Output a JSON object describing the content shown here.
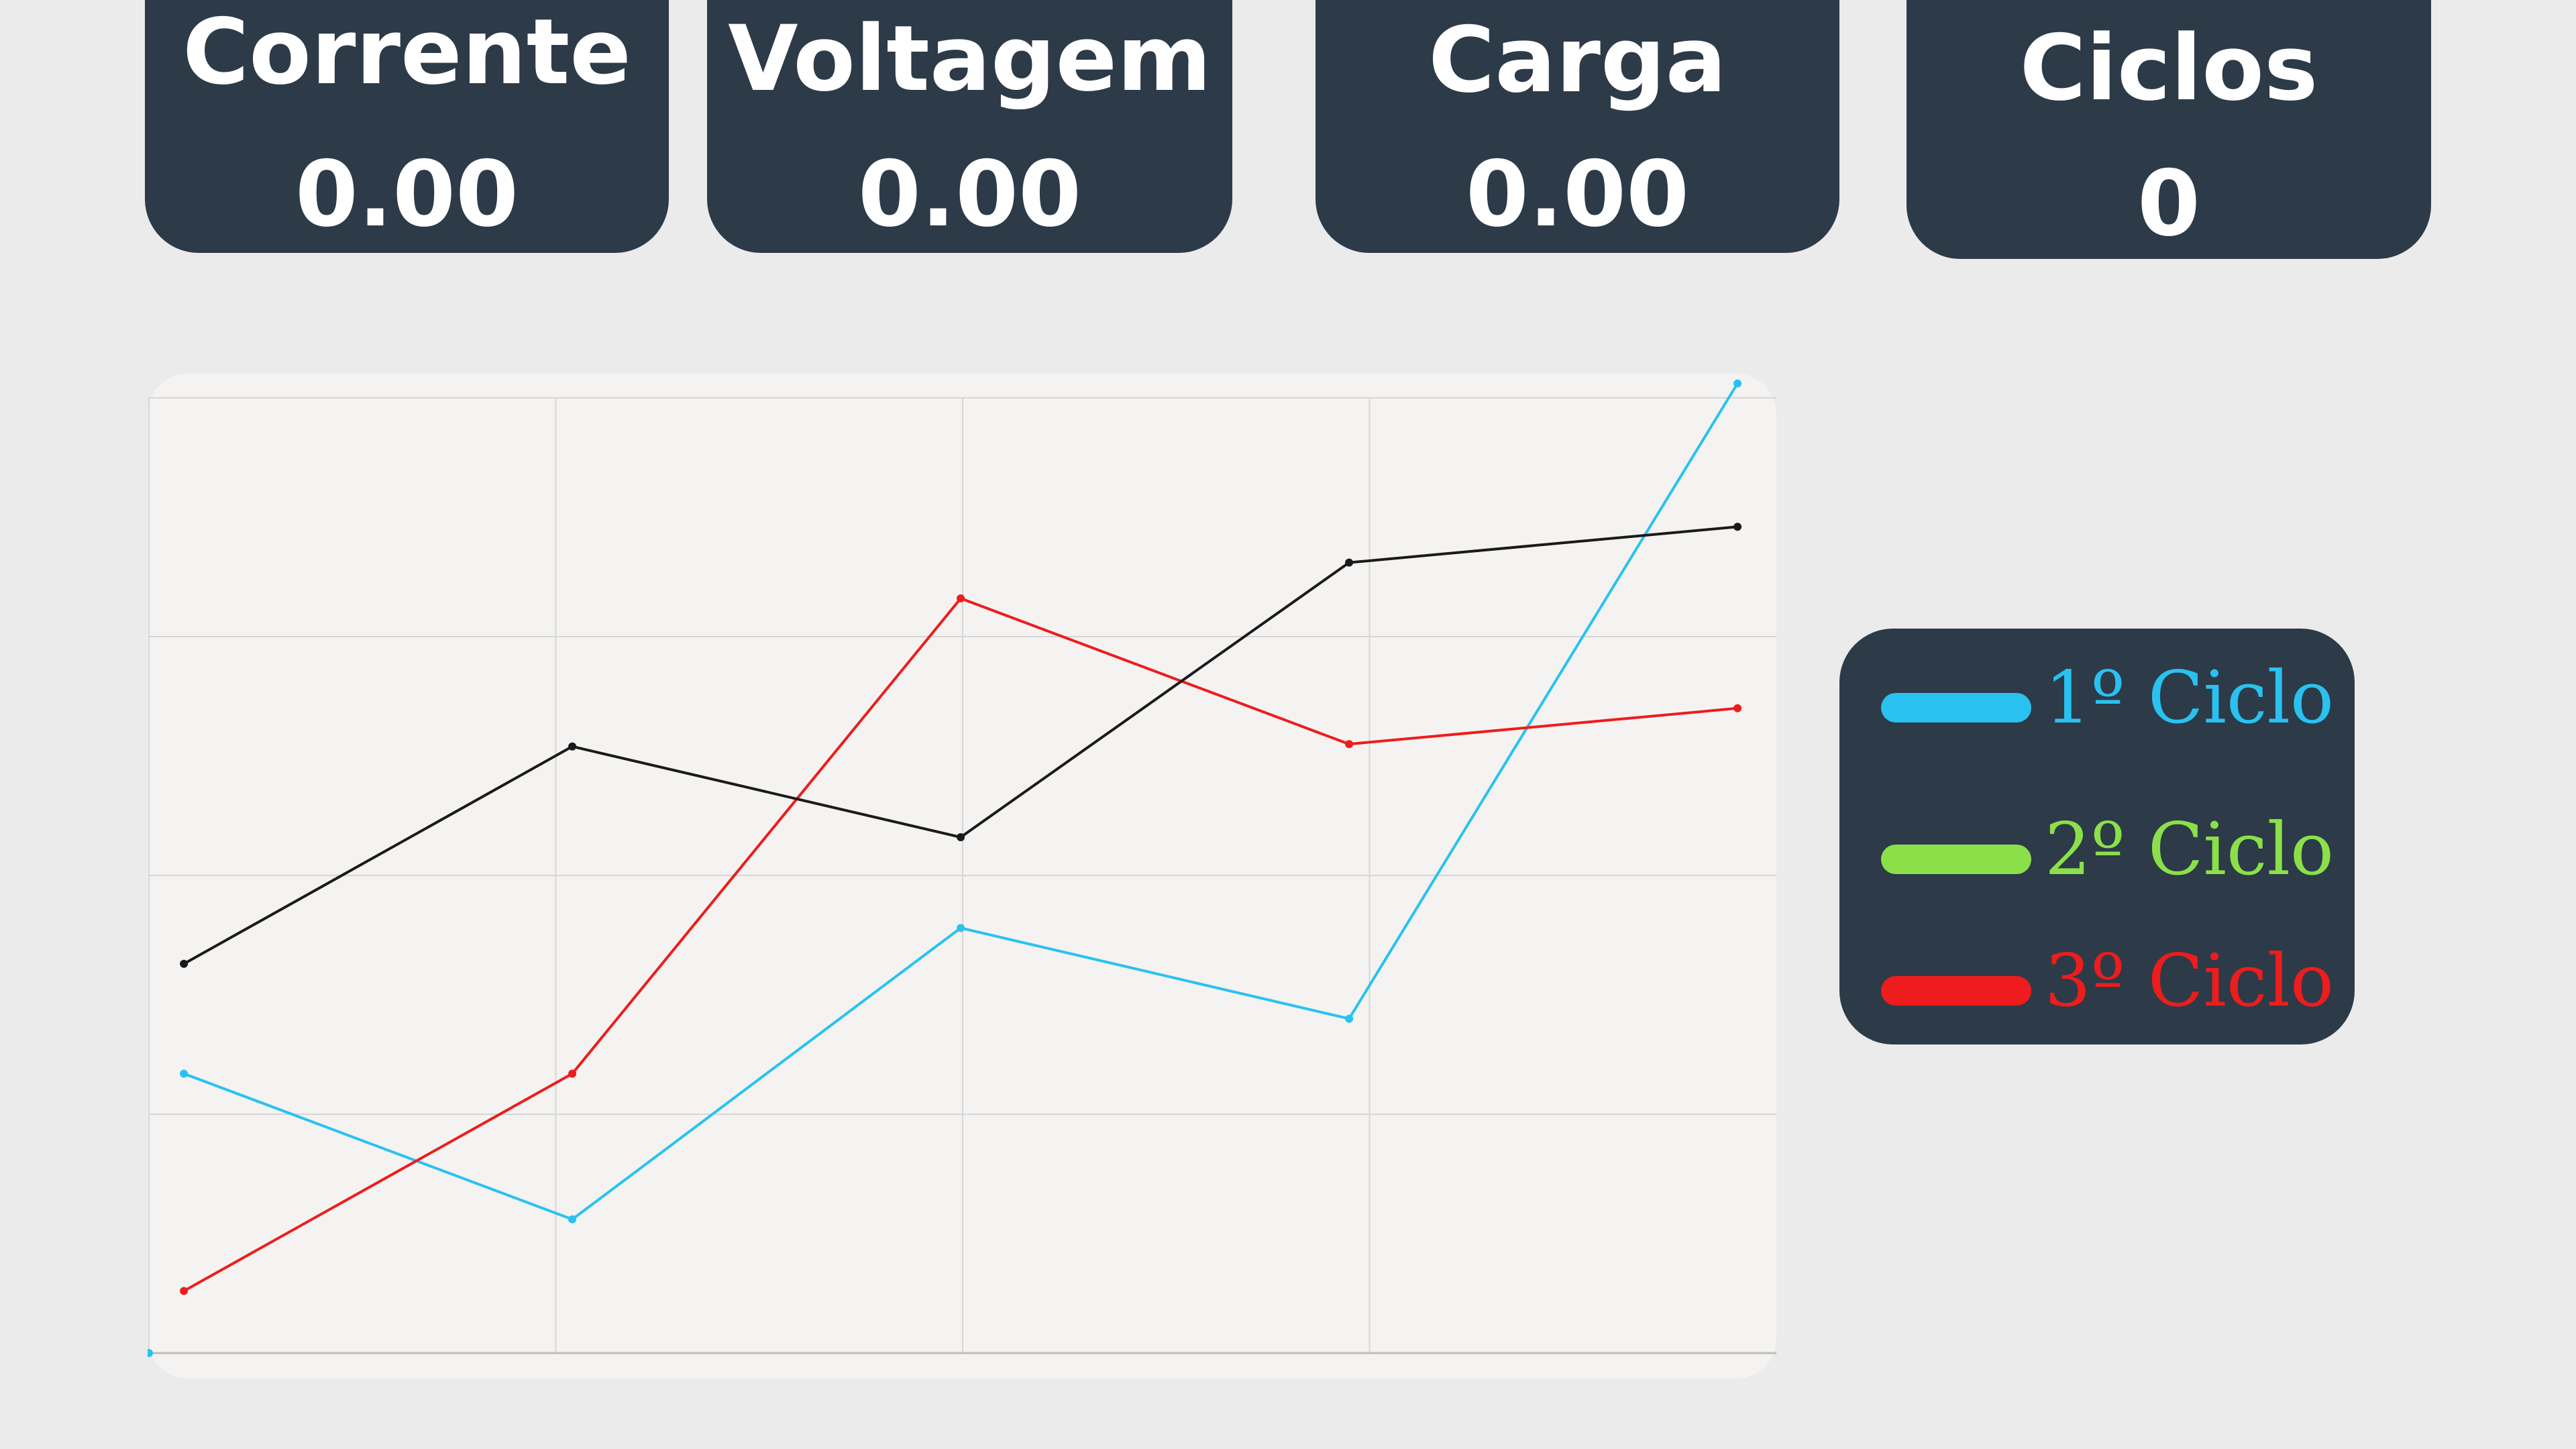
{
  "cards": [
    {
      "label": "Corrente",
      "value": "0.00"
    },
    {
      "label": "Voltagem",
      "value": "0.00"
    },
    {
      "label": "Carga",
      "value": "0.00"
    },
    {
      "label": "Ciclos",
      "value": "0"
    }
  ],
  "legend": {
    "items": [
      {
        "label": "1º Ciclo",
        "color": "#29c2f0"
      },
      {
        "label": "2º Ciclo",
        "color": "#8be04a"
      },
      {
        "label": "3º Ciclo",
        "color": "#ee1c1c"
      }
    ]
  },
  "chart_data": {
    "type": "line",
    "x": [
      0,
      1,
      2,
      3,
      4
    ],
    "xlim": [
      -0.09,
      4.1
    ],
    "ylim": [
      0,
      4
    ],
    "grid": true,
    "series": [
      {
        "color": "#29c2f0",
        "values": [
          1.17,
          0.56,
          1.78,
          1.4,
          4.06
        ]
      },
      {
        "color": "#ee1c1c",
        "values": [
          0.26,
          1.17,
          3.16,
          2.55,
          2.7
        ]
      },
      {
        "color": "#1a1a1a",
        "values": [
          1.63,
          2.54,
          2.16,
          3.31,
          3.46
        ]
      }
    ]
  }
}
